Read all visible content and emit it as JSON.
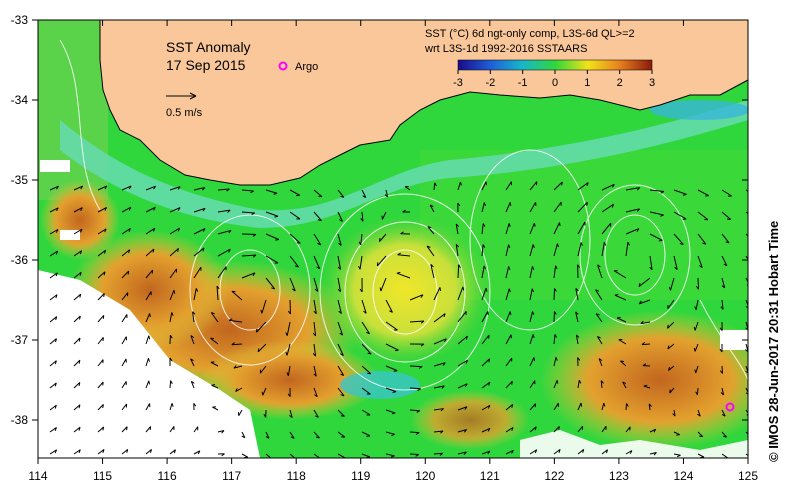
{
  "title": {
    "line1": "SST Anomaly",
    "line2": "17 Sep 2015"
  },
  "legend": {
    "argo_label": "Argo",
    "vector_label": "0.5 m/s",
    "product_line1": "SST (°C) 6d ngt-only comp, L3S-6d QL>=2",
    "product_line2": "wrt L3S-1d 1992-2016 SSTAARS",
    "colorbar_ticks": [
      "-3",
      "-2",
      "-1",
      "0",
      "1",
      "2",
      "3"
    ]
  },
  "axes": {
    "x_ticks": [
      "114",
      "115",
      "116",
      "117",
      "118",
      "119",
      "120",
      "121",
      "122",
      "123",
      "124",
      "125"
    ],
    "y_ticks": [
      "-33",
      "-34",
      "-35",
      "-36",
      "-37",
      "-38"
    ]
  },
  "credit": "© IMOS 28-Jun-2017 20:31 Hobart Time",
  "colors": {
    "land": "#f9c79a",
    "ocean_base": "#2fd63c",
    "warm": "#e89a2a",
    "hot": "#b5561a",
    "cool": "#7fe0c8",
    "argo": "#ff00ff"
  }
}
